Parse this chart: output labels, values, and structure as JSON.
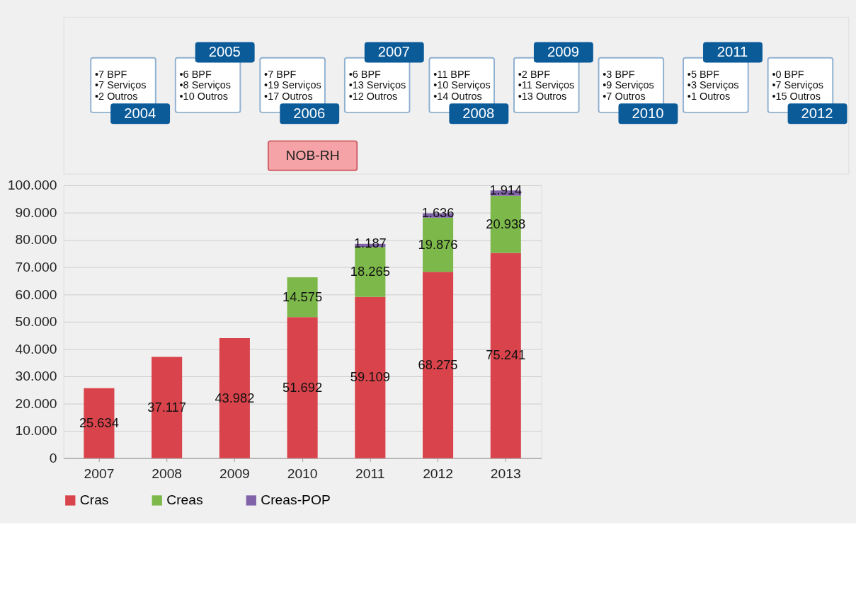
{
  "chart_data": {
    "type": "bar",
    "stacked": true,
    "categories": [
      "2007",
      "2008",
      "2009",
      "2010",
      "2011",
      "2012",
      "2013"
    ],
    "series": [
      {
        "name": "Cras",
        "color": "#d9434b",
        "values": [
          25634,
          37117,
          43982,
          51692,
          59109,
          68275,
          75241
        ],
        "value_labels": [
          "25.634",
          "37.117",
          "43.982",
          "51.692",
          "59.109",
          "68.275",
          "75.241"
        ]
      },
      {
        "name": "Creas",
        "color": "#7cb84a",
        "values": [
          null,
          null,
          null,
          14575,
          18265,
          19876,
          20938
        ],
        "value_labels": [
          null,
          null,
          null,
          "14.575",
          "18.265",
          "19.876",
          "20.938"
        ]
      },
      {
        "name": "Creas-POP",
        "color": "#8062a8",
        "values": [
          null,
          null,
          null,
          null,
          1187,
          1636,
          1914
        ],
        "value_labels": [
          null,
          null,
          null,
          null,
          "1.187",
          "1.636",
          "1.914"
        ]
      }
    ],
    "ylim": [
      0,
      100000
    ],
    "yticks": [
      {
        "value": 0,
        "label": "0"
      },
      {
        "value": 10000,
        "label": "10.000"
      },
      {
        "value": 20000,
        "label": "20.000"
      },
      {
        "value": 30000,
        "label": "30.000"
      },
      {
        "value": 40000,
        "label": "40.000"
      },
      {
        "value": 50000,
        "label": "50.000"
      },
      {
        "value": 60000,
        "label": "60.000"
      },
      {
        "value": 70000,
        "label": "70.000"
      },
      {
        "value": 80000,
        "label": "80.000"
      },
      {
        "value": 90000,
        "label": "90.000"
      },
      {
        "value": 100000,
        "label": "100.000"
      }
    ],
    "grid": "y",
    "legend": "bottom",
    "annotations": [
      "NOB-RH",
      "•7 BPF\n•7 Serviços\n•2 Outros",
      "2004",
      "•6 BPF\n•8 Serviços\n•10 Outros",
      "2005",
      "•7 BPF\n•19 Serviços\n•17 Outros",
      "2006",
      "•6 BPF\n•13 Serviços\n•12 Outros",
      "2007",
      "•11 BPF\n•10 Serviços\n•14 Outros",
      "2008",
      "•2 BPF\n•11 Serviços\n•13 Outros",
      "2009",
      "•3 BPF\n•9 Serviços\n•7 Outros",
      "2010",
      "•5 BPF\n•3 Serviços\n•1 Outros",
      "2011",
      "•0 BPF\n•7 Serviços\n•15 Outros",
      "2012"
    ]
  }
}
